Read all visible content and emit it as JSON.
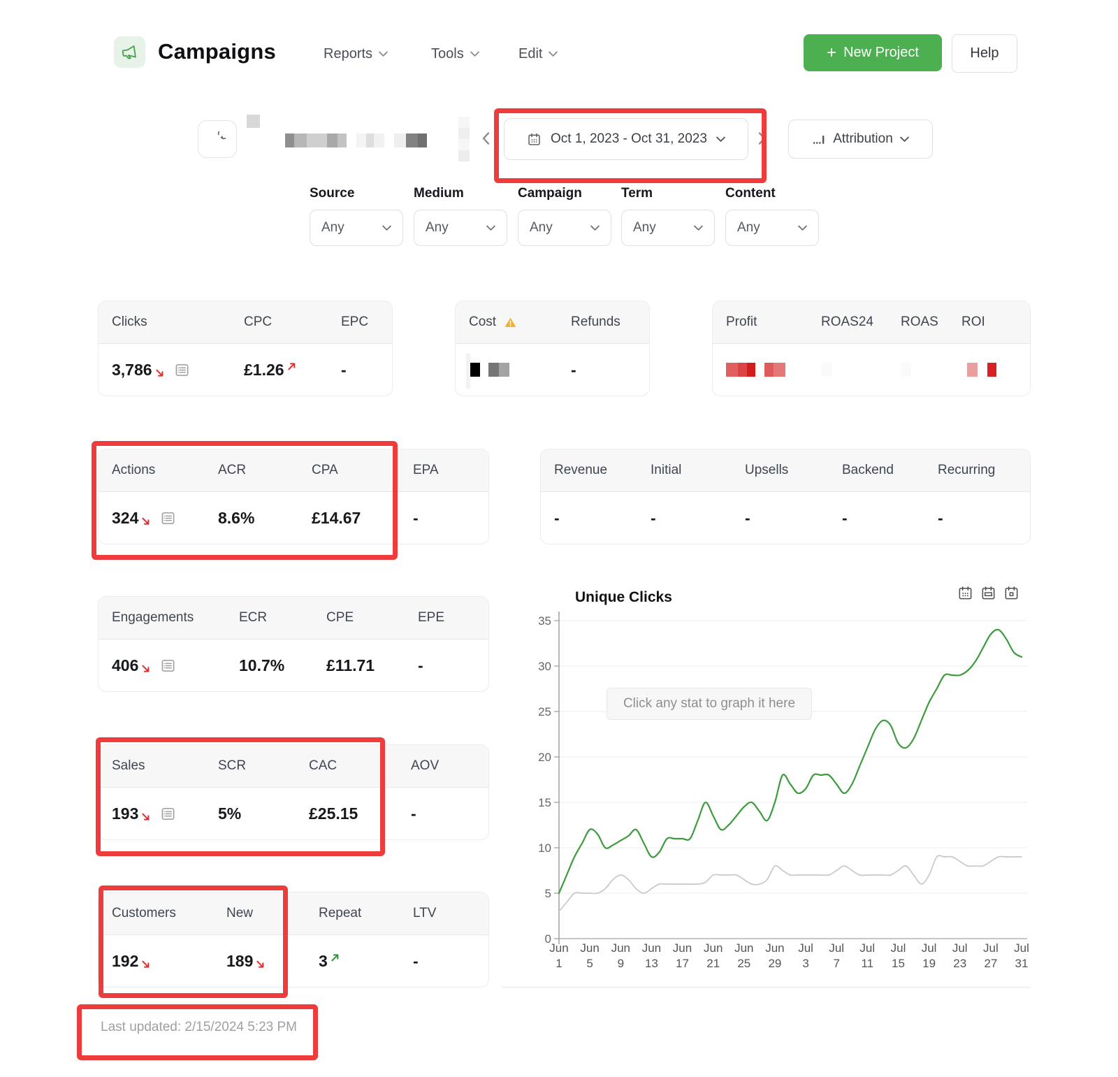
{
  "header": {
    "app_icon": "megaphone-icon",
    "title": "Campaigns",
    "nav": [
      {
        "label": "Reports"
      },
      {
        "label": "Tools"
      },
      {
        "label": "Edit"
      }
    ],
    "new_project_plus": "+",
    "new_project_button": "New Project",
    "help_button": "Help"
  },
  "toolbar": {
    "date_range": "Oct 1, 2023 - Oct 31, 2023",
    "attribution_label": "Attribution"
  },
  "filters": {
    "labels": [
      "Source",
      "Medium",
      "Campaign",
      "Term",
      "Content"
    ],
    "values": [
      "Any",
      "Any",
      "Any",
      "Any",
      "Any"
    ]
  },
  "stats": {
    "clicks": {
      "headers": [
        "Clicks",
        "CPC",
        "EPC"
      ],
      "values": [
        "3,786",
        "£1.26",
        "-"
      ]
    },
    "cost": {
      "headers": [
        "Cost",
        "Refunds"
      ],
      "values": [
        null,
        "-"
      ]
    },
    "profit": {
      "headers": [
        "Profit",
        "ROAS24",
        "ROAS",
        "ROI"
      ],
      "values": [
        null,
        null,
        null,
        null
      ]
    },
    "actions": {
      "headers": [
        "Actions",
        "ACR",
        "CPA",
        "EPA"
      ],
      "values": [
        "324",
        "8.6%",
        "£14.67",
        "-"
      ]
    },
    "revenue": {
      "headers": [
        "Revenue",
        "Initial",
        "Upsells",
        "Backend",
        "Recurring"
      ],
      "values": [
        "-",
        "-",
        "-",
        "-",
        "-"
      ]
    },
    "engagements": {
      "headers": [
        "Engagements",
        "ECR",
        "CPE",
        "EPE"
      ],
      "values": [
        "406",
        "10.7%",
        "£11.71",
        "-"
      ]
    },
    "sales": {
      "headers": [
        "Sales",
        "SCR",
        "CAC",
        "AOV"
      ],
      "values": [
        "193",
        "5%",
        "£25.15",
        "-"
      ]
    },
    "customers": {
      "headers": [
        "Customers",
        "New",
        "Repeat",
        "LTV"
      ],
      "values": [
        "192",
        "189",
        "3",
        "-"
      ]
    }
  },
  "footer": {
    "last_updated": "Last updated: 2/15/2024 5:23 PM"
  },
  "chart_data": {
    "type": "line",
    "title": "Unique Clicks",
    "overlay_button": "Click any stat to graph it here",
    "ylim": [
      0,
      35
    ],
    "yticks": [
      0,
      5,
      10,
      15,
      20,
      25,
      30,
      35
    ],
    "x_tick_step": 4,
    "x_tick_labels": [
      [
        "Jun",
        "1"
      ],
      [
        "Jun",
        "5"
      ],
      [
        "Jun",
        "9"
      ],
      [
        "Jun",
        "13"
      ],
      [
        "Jun",
        "17"
      ],
      [
        "Jun",
        "21"
      ],
      [
        "Jun",
        "25"
      ],
      [
        "Jun",
        "29"
      ],
      [
        "Jul",
        "3"
      ],
      [
        "Jul",
        "7"
      ],
      [
        "Jul",
        "11"
      ],
      [
        "Jul",
        "15"
      ],
      [
        "Jul",
        "19"
      ],
      [
        "Jul",
        "23"
      ],
      [
        "Jul",
        "27"
      ],
      [
        "Jul",
        "31"
      ]
    ],
    "grid": true,
    "legend": "none",
    "series": [
      {
        "name": "unique_clicks",
        "color": "#3d9a3d",
        "values": [
          5,
          7,
          9,
          10.5,
          12,
          11.5,
          10,
          10.3,
          10.8,
          11.3,
          12,
          10.5,
          9,
          9.5,
          11,
          11,
          11,
          11,
          13,
          15,
          13.5,
          12,
          12.5,
          13.5,
          14.5,
          15,
          14,
          13,
          15,
          18,
          17,
          16,
          16.5,
          18,
          18,
          18,
          17,
          16,
          17,
          19,
          21,
          23,
          24,
          23.5,
          21.5,
          21,
          22,
          24,
          26,
          27.5,
          29,
          29,
          29,
          29.5,
          30.5,
          32,
          33.5,
          34,
          33,
          31.5,
          31
        ]
      },
      {
        "name": "secondary_line",
        "color": "#c8c8c8",
        "values": [
          3,
          4,
          5,
          5,
          5,
          5,
          5.5,
          6.5,
          7,
          6.5,
          5.5,
          5,
          5.5,
          6,
          6,
          6,
          6,
          6,
          6,
          6.2,
          7,
          7,
          7,
          7,
          6.5,
          6,
          6,
          6.5,
          8,
          7.5,
          7,
          7,
          7,
          7,
          7,
          7,
          7.5,
          8,
          7.5,
          7,
          7,
          7,
          7,
          7,
          7.5,
          8,
          7,
          6,
          7,
          9,
          9,
          9,
          8.5,
          8,
          8,
          8,
          8.5,
          9,
          9,
          9,
          9
        ]
      }
    ]
  },
  "redactions": {
    "project_name": [
      {
        "w": 13,
        "c": "#8f8f8f"
      },
      {
        "w": 18,
        "c": "#b7b7b7"
      },
      {
        "w": 29,
        "c": "#cfcfcf"
      },
      {
        "w": 15,
        "c": "#a9a9a9"
      },
      {
        "w": 13,
        "c": "#c3c3c3"
      },
      {
        "gap": 14
      },
      {
        "w": 14,
        "c": "#f4f4f4"
      },
      {
        "w": 11,
        "c": "#dedede"
      },
      {
        "w": 15,
        "c": "#f1f1f1"
      },
      {
        "gap": 14
      },
      {
        "w": 17,
        "c": "#efefef"
      },
      {
        "w": 17,
        "c": "#828282"
      },
      {
        "w": 13,
        "c": "#707070"
      }
    ],
    "cost_value": [
      {
        "w": 16,
        "c": "#000000"
      },
      {
        "gap": 12
      },
      {
        "w": 15,
        "c": "#757575"
      },
      {
        "w": 15,
        "c": "#a3a3a3"
      }
    ],
    "profit_value": [
      {
        "w": 17,
        "c": "#e06060"
      },
      {
        "w": 13,
        "c": "#db4444"
      },
      {
        "w": 12,
        "c": "#d31d1d"
      },
      {
        "gap": 13
      },
      {
        "w": 13,
        "c": "#dd5b5b"
      },
      {
        "w": 17,
        "c": "#e47777"
      }
    ],
    "roas24_value": [
      {
        "w": 15,
        "c": "#fafafa"
      }
    ],
    "roas_value": [
      {
        "w": 15,
        "c": "#fafafa"
      }
    ],
    "roi_value": [
      {
        "gap": 8
      },
      {
        "w": 15,
        "c": "#e7a0a0"
      },
      {
        "gap": 14
      },
      {
        "w": 13,
        "c": "#d62222"
      }
    ]
  },
  "colors": {
    "accent_green": "#4caf50",
    "annotation_red": "#ee3b3b",
    "trend_down_red": "#df2f2f",
    "trend_up_green": "#2f8f3b",
    "line_green": "#3d9a3d",
    "line_gray": "#c8c8c8",
    "warning_yellow": "#eeb033"
  },
  "icons": [
    "megaphone-icon",
    "calendar-icon",
    "chevron-down-icon",
    "chevron-left-icon",
    "chevron-right-icon",
    "refresh-icon",
    "list-detail-icon",
    "warning-icon",
    "attribution-bars-icon",
    "trend-down-icon",
    "trend-up-icon",
    "calendar-day-icon",
    "calendar-week-icon",
    "calendar-month-icon",
    "plus-icon"
  ]
}
